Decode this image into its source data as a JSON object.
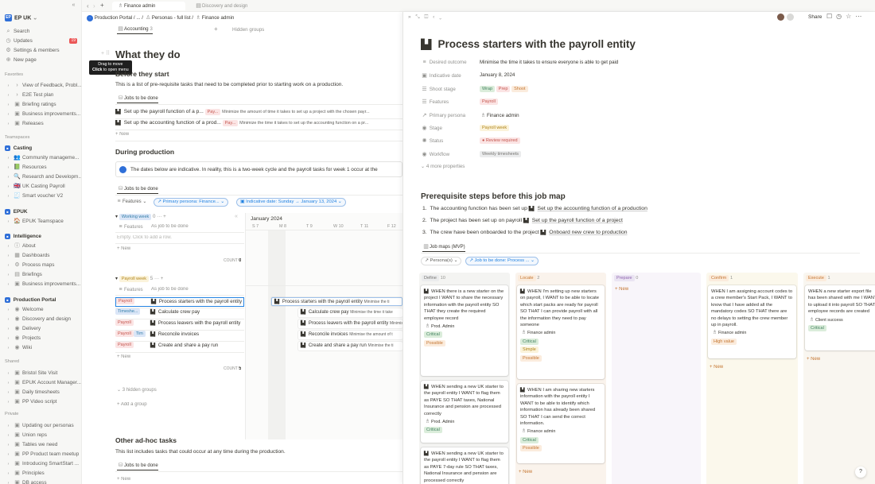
{
  "sidebar": {
    "workspace": "EP UK",
    "workspace_logo": "EP",
    "top": [
      {
        "icon": "search-icon",
        "glyph": "⌕",
        "label": "Search"
      },
      {
        "icon": "updates-icon",
        "glyph": "◷",
        "label": "Updates",
        "badge": "19"
      },
      {
        "icon": "gear-icon",
        "glyph": "⚙",
        "label": "Settings & members"
      },
      {
        "icon": "plus-icon",
        "glyph": "⊕",
        "label": "New page"
      }
    ],
    "favorites_title": "Favorites",
    "favorites": [
      "View of Feedback, Probl...",
      "E2E Test plan",
      "Briefing ratings",
      "Business improvements...",
      "Releases"
    ],
    "teamspaces_title": "Teamspaces",
    "casting_title": "Casting",
    "casting": [
      "Community manageme...",
      "Resources",
      "Research and Developm...",
      "UK Casting Payroll",
      "Smart voucher V2"
    ],
    "epuk_title": "EPUK",
    "epuk": [
      "EPUK Teamspace"
    ],
    "intelligence_title": "Intelligence",
    "intelligence": [
      "About",
      "Dashboards",
      "Process maps",
      "Briefings",
      "Business improvements..."
    ],
    "production_title": "Production Portal",
    "production": [
      "Welcome",
      "Discovery and design",
      "Delivery",
      "Projects",
      "Wiki"
    ],
    "shared_title": "Shared",
    "shared": [
      "Bristol Site Visit",
      "EPUK Account Manager...",
      "Daily timesheets",
      "PP Video script"
    ],
    "private_title": "Private",
    "private": [
      "Updating our personas",
      "Union reps",
      "Tables we need",
      "PP Product team meetup",
      "Introducing SmartStart ...",
      "Principles",
      "DB access"
    ]
  },
  "topbar": {
    "tabs": [
      {
        "label": "Finance admin"
      },
      {
        "label": "Discovery and design"
      }
    ],
    "nav": [
      "‹",
      "›",
      "+"
    ]
  },
  "breadcrumb": [
    "Production Portal",
    "...",
    "Personas - full list",
    "Finance admin"
  ],
  "left": {
    "view_tab": "Accounting",
    "view_count": "3",
    "hidden_groups": "Hidden groups",
    "tooltip_line1": "Drag to move",
    "tooltip_line2_b": "Click",
    "tooltip_line2": " to open menu",
    "h1": "What they do",
    "before_title": "Before they start",
    "before_desc": "This is a list of pre-requisite tasks that need to be completed prior to starting work on a production.",
    "jobs_tab": "Jobs to be done",
    "before_rows": [
      {
        "title": "Set up the payroll function of a p...",
        "tag": "Pay...",
        "desc": "Minimize the amount of time it takes to set up a project with the chosen payr..."
      },
      {
        "title": "Set up the accounting function of a prod...",
        "tag": "Pay...",
        "desc": "Minimize the time it takes to set up the accounting function on a pr..."
      }
    ],
    "new": "New",
    "during_title": "During production",
    "callout": "The dates below are indicative. In reality, this is a two-week cycle and the payroll tasks for week 1 occur at the",
    "filters": [
      "Features",
      "Primary persona: Finance...",
      "Indicative date: Sunday → January 13, 2024"
    ],
    "group1": {
      "name": "Working week",
      "count": "0"
    },
    "group2": {
      "name": "Payroll week",
      "count": "5"
    },
    "col_features": "Features",
    "col_job": "As job to be done",
    "empty": "Empty. Click to add a row.",
    "count_label": "COUNT",
    "count0": "0",
    "count5": "5",
    "timeline_month": "January 2024",
    "timeline_days": [
      "S 7",
      "M 8",
      "T 9",
      "W 10",
      "T 11",
      "F 12"
    ],
    "payroll_rows": [
      {
        "tag": "Payroll",
        "title": "Process starters with the payroll entity"
      },
      {
        "tag": "Timeshe...",
        "title": "Calculate crew pay"
      },
      {
        "tag": "Payroll",
        "title": "Process leavers with the payroll entity"
      },
      {
        "tag": "Payroll",
        "tag2": "Tim",
        "title": "Reconcile invoices"
      },
      {
        "tag": "Payroll",
        "title": "Create and share a pay run"
      }
    ],
    "timeline_bars": [
      {
        "title": "Process starters with the payroll entity",
        "desc": "Minimise the ti"
      },
      {
        "title": "Calculate crew pay",
        "desc": "Minimise the time it take"
      },
      {
        "title": "Process leavers with the payroll entity",
        "desc": "Minimise th"
      },
      {
        "title": "Reconcile invoices",
        "desc": "Minimise the amount of t"
      },
      {
        "title": "Create and share a pay run",
        "desc": "Minimise the ti"
      }
    ],
    "hidden3": "3 hidden groups",
    "add_group": "Add a group",
    "adhoc_title": "Other ad-hoc tasks",
    "adhoc_desc": "This list includes tasks that could occur at any time during the production."
  },
  "panel": {
    "share": "Share",
    "title": "Process starters with the payroll entity",
    "props": [
      {
        "icon": "text-icon",
        "label": "Desired outcome",
        "value": "Minimise the time it takes to ensure everyone is able to get paid"
      },
      {
        "icon": "calendar-icon",
        "label": "Indicative date",
        "value": "January 8, 2024"
      }
    ],
    "shoot_label": "Shoot stage",
    "shoot_tags": [
      "Wrap",
      "Prep",
      "Shoot"
    ],
    "features_label": "Features",
    "features_tag": "Payroll",
    "persona_label": "Primary persona",
    "persona_value": "Finance admin",
    "stage_label": "Stage",
    "stage_tag": "Payroll week",
    "status_label": "Status",
    "status_tag": "Review required",
    "workflow_label": "Workflow",
    "workflow_tag": "Weekly timesheets",
    "more_props": "4 more properties",
    "prereq_title": "Prerequisite steps before this job map",
    "prereq": [
      {
        "text": "The accounting function has been set up",
        "link": "Set up the accounting function of a production"
      },
      {
        "text": "The project has been set up on payroll",
        "link": "Set up the payroll function of a project"
      },
      {
        "text": "The crew have been onboarded to the project",
        "link": "Onboard new crew to production"
      }
    ],
    "jobmap_tab": "Job maps (MVP)",
    "jm_filters": [
      "Persona(s)",
      "Job to be done: Process ..."
    ],
    "columns": [
      {
        "name": "Define",
        "count": "10"
      },
      {
        "name": "Locate",
        "count": "2"
      },
      {
        "name": "Prepare",
        "count": "0"
      },
      {
        "name": "Confirm",
        "count": "1"
      },
      {
        "name": "Execute",
        "count": "1"
      }
    ],
    "define_cards": [
      {
        "text": "WHEN there is a new starter on the project I WANT to share the necessary information with the payroll entity SO THAT they create the required employee record",
        "who": "Prod. Admin",
        "tags": [
          "Critical",
          "Possible"
        ]
      },
      {
        "text": "WHEN sending a new UK starter to the payroll entity I WANT to flag them as PAYE SO THAT taxes, National Insurance and pension are processed correctly",
        "who": "Prod. Admin",
        "tags": [
          "Critical"
        ]
      },
      {
        "text": "WHEN sending a new UK starter to the payroll entity I WANT to flag them as PAYE 7-day rule SO THAT taxes, National Insurance and pension are processed correctly",
        "who": "Prod. Admin",
        "tags": []
      }
    ],
    "locate_cards": [
      {
        "text": "WHEN I'm setting up new starters on payroll, I WANT to be able to locate which start packs are ready for payroll SO THAT I can provide payroll with all the information they need to pay someone",
        "who": "Finance admin",
        "tags": [
          "Critical",
          "Simple",
          "Possible"
        ]
      },
      {
        "text": "WHEN I am sharing new starters information with the payroll entity I WANT to be able to identify which information has already been shared SO THAT I can send the correct information.",
        "who": "Finance admin",
        "tags": [
          "Critical",
          "Possible"
        ]
      }
    ],
    "confirm_cards": [
      {
        "text": "WHEN I am assigning account codes to a crew member's Start Pack, I WANT to know that I have added all the mandatory codes SO THAT there are no delays to setting the crew member up in payroll.",
        "who": "Finance admin",
        "tags": [
          "High value"
        ]
      }
    ],
    "execute_cards": [
      {
        "text": "WHEN a new starter export file has been shared with me I WANT to upload it into payroll SO THAT employee records are created",
        "who": "Client success",
        "tags": [
          "Critical"
        ]
      }
    ],
    "new": "New",
    "help": "?"
  }
}
